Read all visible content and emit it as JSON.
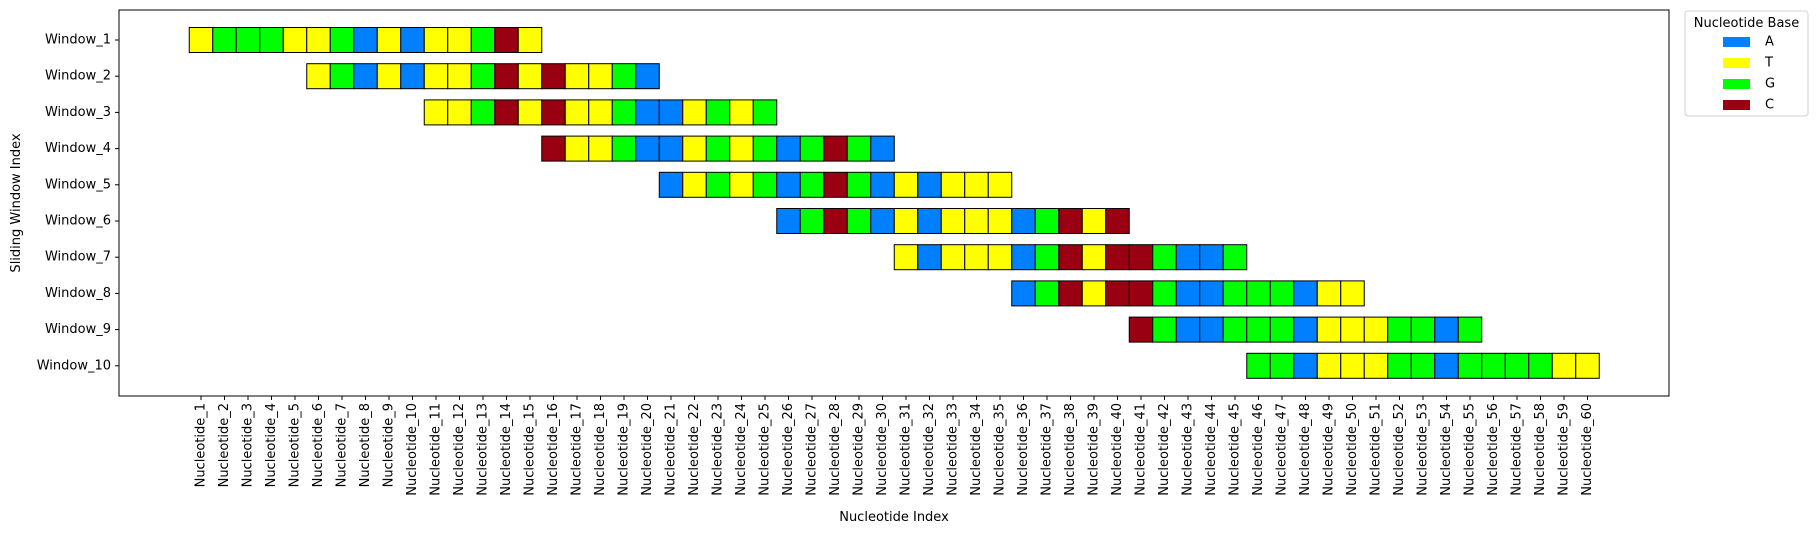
{
  "chart_data": {
    "type": "heatmap",
    "xlabel": "Nucleotide Index",
    "ylabel": "Sliding Window Index",
    "x_categories": [
      "Nucleotide_1",
      "Nucleotide_2",
      "Nucleotide_3",
      "Nucleotide_4",
      "Nucleotide_5",
      "Nucleotide_6",
      "Nucleotide_7",
      "Nucleotide_8",
      "Nucleotide_9",
      "Nucleotide_10",
      "Nucleotide_11",
      "Nucleotide_12",
      "Nucleotide_13",
      "Nucleotide_14",
      "Nucleotide_15",
      "Nucleotide_16",
      "Nucleotide_17",
      "Nucleotide_18",
      "Nucleotide_19",
      "Nucleotide_20",
      "Nucleotide_21",
      "Nucleotide_22",
      "Nucleotide_23",
      "Nucleotide_24",
      "Nucleotide_25",
      "Nucleotide_26",
      "Nucleotide_27",
      "Nucleotide_28",
      "Nucleotide_29",
      "Nucleotide_30",
      "Nucleotide_31",
      "Nucleotide_32",
      "Nucleotide_33",
      "Nucleotide_34",
      "Nucleotide_35",
      "Nucleotide_36",
      "Nucleotide_37",
      "Nucleotide_38",
      "Nucleotide_39",
      "Nucleotide_40",
      "Nucleotide_41",
      "Nucleotide_42",
      "Nucleotide_43",
      "Nucleotide_44",
      "Nucleotide_45",
      "Nucleotide_46",
      "Nucleotide_47",
      "Nucleotide_48",
      "Nucleotide_49",
      "Nucleotide_50",
      "Nucleotide_51",
      "Nucleotide_52",
      "Nucleotide_53",
      "Nucleotide_54",
      "Nucleotide_55",
      "Nucleotide_56",
      "Nucleotide_57",
      "Nucleotide_58",
      "Nucleotide_59",
      "Nucleotide_60"
    ],
    "windows": [
      {
        "name": "Window_1",
        "start": 1,
        "sequence": "TGGGTTGATATTGCT"
      },
      {
        "name": "Window_2",
        "start": 6,
        "sequence": "TGATATTGCTCTTGA"
      },
      {
        "name": "Window_3",
        "start": 11,
        "sequence": "TTGCTCTTGAATGTG"
      },
      {
        "name": "Window_4",
        "start": 16,
        "sequence": "CTTGAATGTGAGCGA"
      },
      {
        "name": "Window_5",
        "start": 21,
        "sequence": "ATGTGAGCGATATTT"
      },
      {
        "name": "Window_6",
        "start": 26,
        "sequence": "AGCGATATTTAGCTC"
      },
      {
        "name": "Window_7",
        "start": 31,
        "sequence": "TATTTAGCTCCGAAG"
      },
      {
        "name": "Window_8",
        "start": 36,
        "sequence": "AGCTCCGAAGGGATT"
      },
      {
        "name": "Window_9",
        "start": 41,
        "sequence": "CGAAGGGATTTGGAG"
      },
      {
        "name": "Window_10",
        "start": 46,
        "sequence": "GGATTTGGAGGGGTT"
      }
    ],
    "legend": {
      "title": "Nucleotide Base",
      "placement": "outside-top-right",
      "entries": [
        {
          "label": "A",
          "color": "#0080FF"
        },
        {
          "label": "T",
          "color": "#FFFF00"
        },
        {
          "label": "G",
          "color": "#00FF00"
        },
        {
          "label": "C",
          "color": "#990011"
        }
      ]
    },
    "grid": false
  }
}
